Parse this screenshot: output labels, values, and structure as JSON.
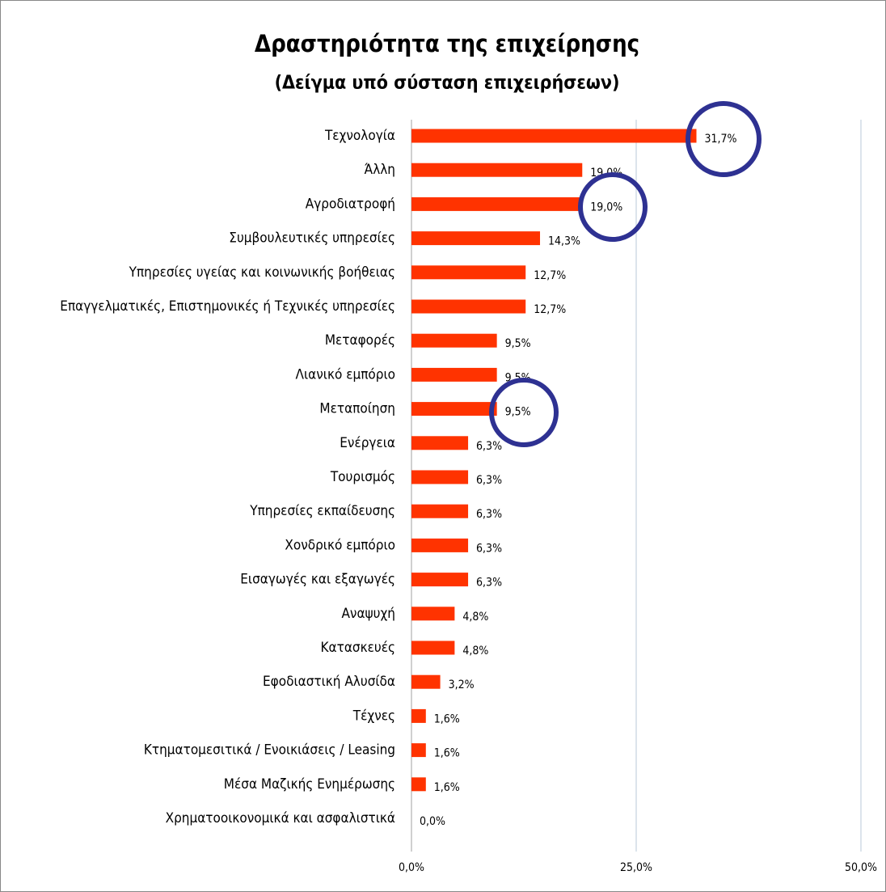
{
  "chart_data": {
    "type": "bar",
    "orientation": "horizontal",
    "title": "Δραστηριότητα της επιχείρησης",
    "subtitle": "(Δείγμα υπό σύσταση  επιχειρήσεων)",
    "categories": [
      "Τεχνολογία",
      "Άλλη",
      "Αγροδιατροφή",
      "Συμβουλευτικές υπηρεσίες",
      "Υπηρεσίες υγείας και κοινωνικής βοήθειας",
      "Επαγγελματικές, Επιστημονικές ή Τεχνικές υπηρεσίες",
      "Μεταφορές",
      "Λιανικό εμπόριο",
      "Μεταποίηση",
      "Ενέργεια",
      "Τουρισμός",
      "Υπηρεσίες εκπαίδευσης",
      "Χονδρικό εμπόριο",
      "Εισαγωγές και εξαγωγές",
      "Αναψυχή",
      "Κατασκευές",
      "Εφοδιαστική Αλυσίδα",
      "Τέχνες",
      "Κτηματομεσιτικά / Ενοικιάσεις / Leasing",
      "Μέσα Μαζικής Ενημέρωσης",
      "Χρηματοοικονομικά  και ασφαλιστικά"
    ],
    "values": [
      31.7,
      19.0,
      19.0,
      14.3,
      12.7,
      12.7,
      9.5,
      9.5,
      9.5,
      6.3,
      6.3,
      6.3,
      6.3,
      6.3,
      4.8,
      4.8,
      3.2,
      1.6,
      1.6,
      1.6,
      0.0
    ],
    "value_labels": [
      "31,7%",
      "19,0%",
      "19,0%",
      "14,3%",
      "12,7%",
      "12,7%",
      "9,5%",
      "9,5%",
      "9,5%",
      "6,3%",
      "6,3%",
      "6,3%",
      "6,3%",
      "6,3%",
      "4,8%",
      "4,8%",
      "3,2%",
      "1,6%",
      "1,6%",
      "1,6%",
      "0,0%"
    ],
    "color": "#ff3300",
    "xlim": [
      0,
      50
    ],
    "xticks": [
      {
        "value": 0,
        "label": "0,0%"
      },
      {
        "value": 25,
        "label": "25,0%"
      },
      {
        "value": 50,
        "label": "50,0%"
      }
    ],
    "grid": true
  }
}
